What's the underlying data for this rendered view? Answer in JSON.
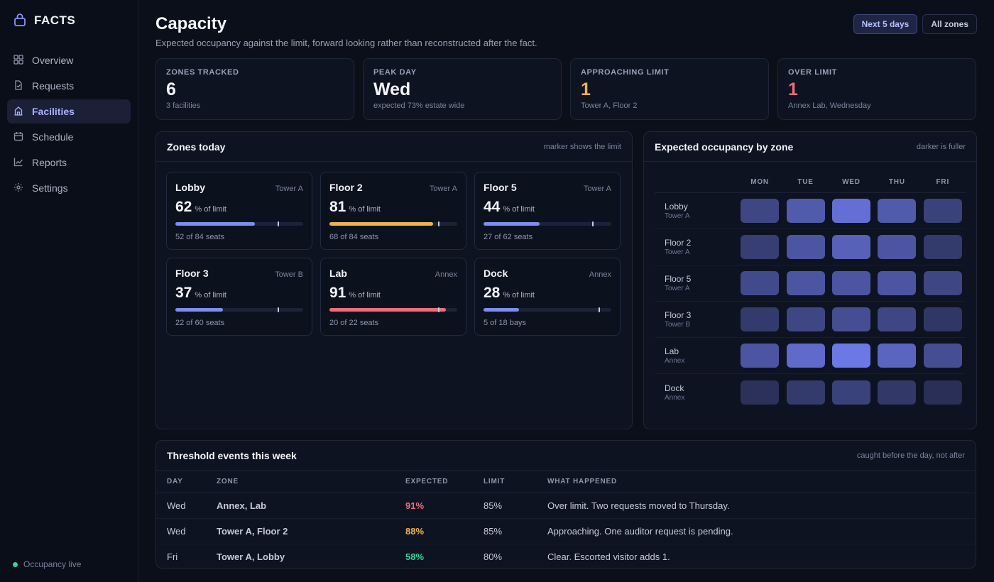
{
  "brand": {
    "name": "FACTS"
  },
  "nav": [
    {
      "label": "Overview",
      "icon": "grid-icon",
      "active": false
    },
    {
      "label": "Requests",
      "icon": "document-icon",
      "active": false
    },
    {
      "label": "Facilities",
      "icon": "building-icon",
      "active": true
    },
    {
      "label": "Schedule",
      "icon": "calendar-icon",
      "active": false
    },
    {
      "label": "Reports",
      "icon": "chart-icon",
      "active": false
    },
    {
      "label": "Settings",
      "icon": "gear-icon",
      "active": false
    }
  ],
  "status": {
    "label": "Occupancy live",
    "color": "#34d399"
  },
  "header": {
    "title": "Capacity",
    "subtitle": "Expected occupancy against the limit, forward looking rather than reconstructed after the fact.",
    "range_button": "Next 5 days",
    "zones_button": "All zones"
  },
  "stats": [
    {
      "label": "ZONES TRACKED",
      "value": "6",
      "note": "3 facilities",
      "tone": "default"
    },
    {
      "label": "PEAK DAY",
      "value": "Wed",
      "note": "expected 73% estate wide",
      "tone": "default"
    },
    {
      "label": "APPROACHING LIMIT",
      "value": "1",
      "note": "Tower A, Floor 2",
      "tone": "amber"
    },
    {
      "label": "OVER LIMIT",
      "value": "1",
      "note": "Annex Lab, Wednesday",
      "tone": "red"
    }
  ],
  "zones_panel": {
    "title": "Zones today",
    "hint": "marker shows the limit",
    "unit_label": "% of limit",
    "zones": [
      {
        "name": "Lobby",
        "building": "Tower A",
        "pct": 62,
        "limit_pct": 80,
        "seats": "52 of 84 seats",
        "color": "#7f8cf0"
      },
      {
        "name": "Floor 2",
        "building": "Tower A",
        "pct": 81,
        "limit_pct": 85,
        "seats": "68 of 84 seats",
        "color": "#f0b24a"
      },
      {
        "name": "Floor 5",
        "building": "Tower A",
        "pct": 44,
        "limit_pct": 85,
        "seats": "27 of 62 seats",
        "color": "#7f8cf0"
      },
      {
        "name": "Floor 3",
        "building": "Tower B",
        "pct": 37,
        "limit_pct": 80,
        "seats": "22 of 60 seats",
        "color": "#7f8cf0"
      },
      {
        "name": "Lab",
        "building": "Annex",
        "pct": 91,
        "limit_pct": 85,
        "seats": "20 of 22 seats",
        "color": "#f26b7a"
      },
      {
        "name": "Dock",
        "building": "Annex",
        "pct": 28,
        "limit_pct": 90,
        "seats": "5 of 18 bays",
        "color": "#7f8cf0"
      }
    ]
  },
  "heatmap": {
    "title": "Expected occupancy by zone",
    "hint": "darker is fuller",
    "days": [
      "MON",
      "TUE",
      "WED",
      "THU",
      "FRI"
    ],
    "rows": [
      {
        "zone": "Lobby",
        "building": "Tower A",
        "levels": [
          0.35,
          0.62,
          0.88,
          0.62,
          0.3
        ]
      },
      {
        "zone": "Floor 2",
        "building": "Tower A",
        "levels": [
          0.25,
          0.55,
          0.7,
          0.55,
          0.2
        ]
      },
      {
        "zone": "Floor 5",
        "building": "Tower A",
        "levels": [
          0.4,
          0.55,
          0.55,
          0.55,
          0.35
        ]
      },
      {
        "zone": "Floor 3",
        "building": "Tower B",
        "levels": [
          0.2,
          0.35,
          0.45,
          0.35,
          0.15
        ]
      },
      {
        "zone": "Lab",
        "building": "Annex",
        "levels": [
          0.55,
          0.82,
          1.0,
          0.75,
          0.45
        ]
      },
      {
        "zone": "Dock",
        "building": "Annex",
        "levels": [
          0.08,
          0.2,
          0.3,
          0.18,
          0.05
        ]
      }
    ]
  },
  "events": {
    "title": "Threshold events this week",
    "hint": "caught before the day, not after",
    "columns": [
      "DAY",
      "ZONE",
      "EXPECTED",
      "LIMIT",
      "WHAT HAPPENED"
    ],
    "rows": [
      {
        "day": "Wed",
        "zone": "Annex, Lab",
        "expected": "91%",
        "limit": "85%",
        "what": "Over limit. Two requests moved to Thursday.",
        "color": "#f26b7a"
      },
      {
        "day": "Wed",
        "zone": "Tower A, Floor 2",
        "expected": "88%",
        "limit": "85%",
        "what": "Approaching. One auditor request is pending.",
        "color": "#f0b24a"
      },
      {
        "day": "Fri",
        "zone": "Tower A, Lobby",
        "expected": "58%",
        "limit": "80%",
        "what": "Clear. Escorted visitor adds 1.",
        "color": "#34d399"
      }
    ]
  }
}
